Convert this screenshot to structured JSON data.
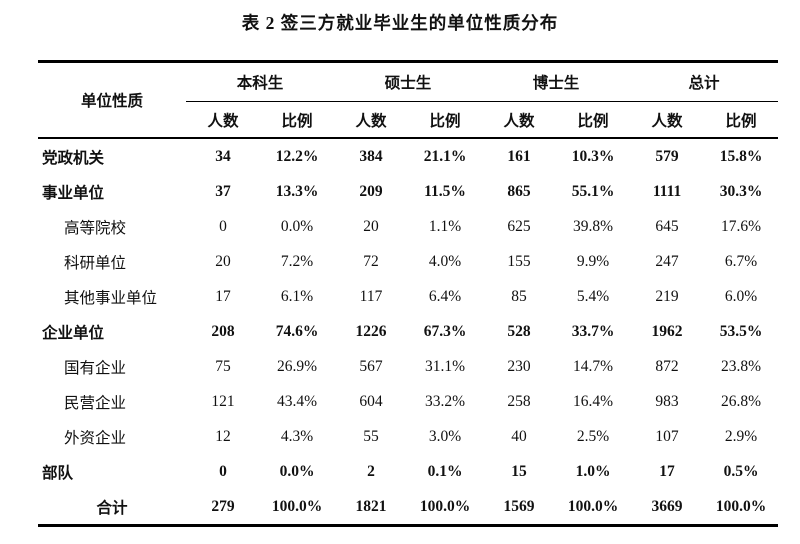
{
  "page": {
    "title": "表 2 签三方就业毕业生的单位性质分布"
  },
  "colors": {
    "background": "#ffffff",
    "text": "#111111",
    "border": "#000000"
  },
  "table": {
    "row_label_header": "单位性质",
    "group_headers": [
      "本科生",
      "硕士生",
      "博士生",
      "总计"
    ],
    "sub_headers": [
      "人数",
      "比例"
    ],
    "rows": [
      {
        "label": "党政机关",
        "indent": 0,
        "bold": true,
        "align": "left",
        "values": [
          "34",
          "12.2%",
          "384",
          "21.1%",
          "161",
          "10.3%",
          "579",
          "15.8%"
        ]
      },
      {
        "label": "事业单位",
        "indent": 0,
        "bold": true,
        "align": "left",
        "values": [
          "37",
          "13.3%",
          "209",
          "11.5%",
          "865",
          "55.1%",
          "1111",
          "30.3%"
        ]
      },
      {
        "label": "高等院校",
        "indent": 1,
        "bold": false,
        "align": "left",
        "values": [
          "0",
          "0.0%",
          "20",
          "1.1%",
          "625",
          "39.8%",
          "645",
          "17.6%"
        ]
      },
      {
        "label": "科研单位",
        "indent": 1,
        "bold": false,
        "align": "left",
        "values": [
          "20",
          "7.2%",
          "72",
          "4.0%",
          "155",
          "9.9%",
          "247",
          "6.7%"
        ]
      },
      {
        "label": "其他事业单位",
        "indent": 1,
        "bold": false,
        "align": "left",
        "values": [
          "17",
          "6.1%",
          "117",
          "6.4%",
          "85",
          "5.4%",
          "219",
          "6.0%"
        ]
      },
      {
        "label": "企业单位",
        "indent": 0,
        "bold": true,
        "align": "left",
        "values": [
          "208",
          "74.6%",
          "1226",
          "67.3%",
          "528",
          "33.7%",
          "1962",
          "53.5%"
        ]
      },
      {
        "label": "国有企业",
        "indent": 1,
        "bold": false,
        "align": "left",
        "values": [
          "75",
          "26.9%",
          "567",
          "31.1%",
          "230",
          "14.7%",
          "872",
          "23.8%"
        ]
      },
      {
        "label": "民营企业",
        "indent": 1,
        "bold": false,
        "align": "left",
        "values": [
          "121",
          "43.4%",
          "604",
          "33.2%",
          "258",
          "16.4%",
          "983",
          "26.8%"
        ]
      },
      {
        "label": "外资企业",
        "indent": 1,
        "bold": false,
        "align": "left",
        "values": [
          "12",
          "4.3%",
          "55",
          "3.0%",
          "40",
          "2.5%",
          "107",
          "2.9%"
        ]
      },
      {
        "label": "部队",
        "indent": 0,
        "bold": true,
        "align": "left",
        "values": [
          "0",
          "0.0%",
          "2",
          "0.1%",
          "15",
          "1.0%",
          "17",
          "0.5%"
        ]
      },
      {
        "label": "合计",
        "indent": 0,
        "bold": true,
        "align": "center",
        "values": [
          "279",
          "100.0%",
          "1821",
          "100.0%",
          "1569",
          "100.0%",
          "3669",
          "100.0%"
        ]
      }
    ]
  }
}
